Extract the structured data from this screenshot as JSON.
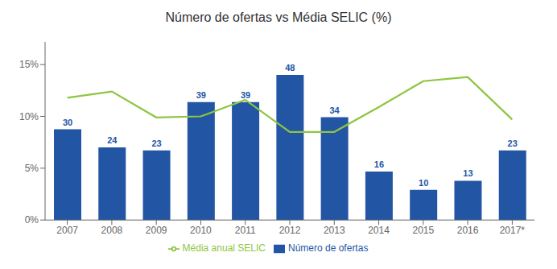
{
  "chart_data": {
    "type": "bar",
    "title": "Número de ofertas vs Média SELIC (%)",
    "categories": [
      "2007",
      "2008",
      "2009",
      "2010",
      "2011",
      "2012",
      "2013",
      "2014",
      "2015",
      "2016",
      "2017*"
    ],
    "series": [
      {
        "name": "Número de ofertas",
        "type": "bar",
        "color": "#2255a4",
        "axis": "y2",
        "data_labels": true,
        "values": [
          30,
          24,
          23,
          39,
          39,
          48,
          34,
          16,
          10,
          13,
          23
        ]
      },
      {
        "name": "Média anual SELIC",
        "type": "line",
        "color": "#8dc63f",
        "values": [
          11.8,
          12.4,
          9.9,
          10.0,
          11.6,
          8.5,
          8.5,
          10.9,
          13.4,
          13.8,
          9.7
        ]
      }
    ],
    "ylim": [
      0,
      17.19
    ],
    "yticks": [
      {
        "value": 0,
        "label": "0%"
      },
      {
        "value": 5,
        "label": "5%"
      },
      {
        "value": 10,
        "label": "10%"
      },
      {
        "value": 15,
        "label": "15%"
      }
    ],
    "y2lim": [
      0,
      58.93
    ],
    "legend": "bottom",
    "grid": false
  }
}
